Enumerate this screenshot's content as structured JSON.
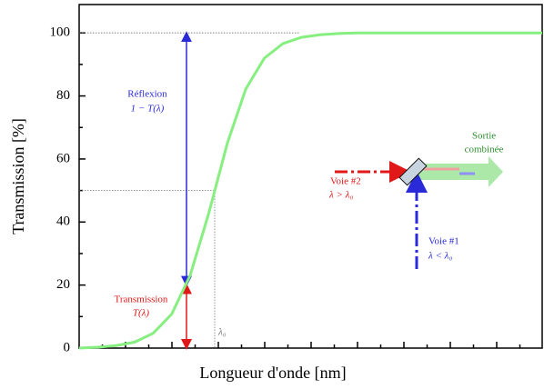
{
  "chart_data": {
    "type": "line",
    "xlabel": "Longueur d'onde [nm]",
    "ylabel": "Transmission [%]",
    "categories": [
      null,
      null,
      null,
      null,
      null,
      null,
      null,
      null,
      null,
      null,
      null,
      null,
      null,
      null,
      null,
      null,
      null,
      null,
      null,
      null,
      null,
      null,
      null,
      null,
      null,
      null
    ],
    "series": [
      {
        "color": "#86ef7f",
        "values": [
          0,
          0.3,
          0.8,
          1.9,
          4.7,
          10.8,
          23.2,
          42.8,
          65.0,
          82.2,
          92.0,
          96.6,
          98.6,
          99.4,
          99.8,
          100,
          100,
          100,
          100,
          100,
          100,
          100,
          100,
          100,
          100,
          100
        ]
      }
    ],
    "ylim": [
      0,
      109
    ],
    "yticks": [
      0,
      20,
      40,
      60,
      80,
      100
    ],
    "annotations": {
      "reflexion": "Réflexion",
      "reflexion_formula": "1 − T(λ)",
      "transmission": "Transmission",
      "transmission_formula": "T(λ)",
      "lambda0": "λ₀",
      "voie2": "Voie #2",
      "voie2_cond": "λ > λ₀",
      "voie1": "Voie #1",
      "voie1_cond": "λ < λ₀",
      "sortie": "Sortie",
      "sortie2": "combinée"
    }
  }
}
